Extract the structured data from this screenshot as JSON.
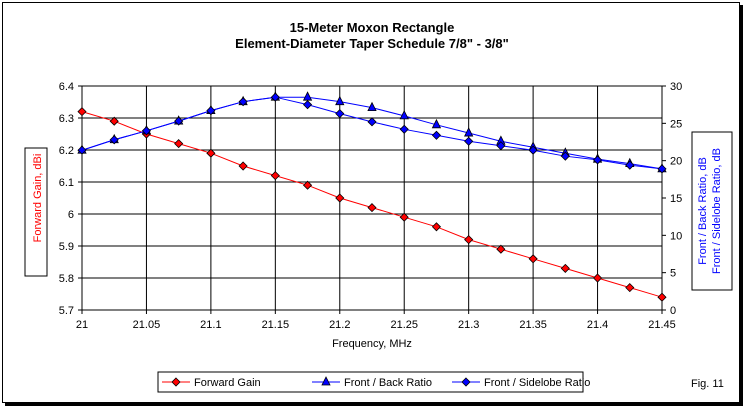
{
  "chart_data": {
    "type": "line",
    "title": [
      "15-Meter Moxon Rectangle",
      "Element-Diameter Taper Schedule 7/8\" - 3/8\""
    ],
    "xlabel": "Frequency, MHz",
    "ylabel": "Forward Gain,  dBi",
    "y2label": [
      "Front / Back Ratio,  dB",
      "Front / Sidelobe Ratio,  dB"
    ],
    "xlim": [
      21,
      21.45
    ],
    "ylim": [
      5.7,
      6.4
    ],
    "y2lim": [
      0,
      30
    ],
    "xticks": [
      "21",
      "21.05",
      "21.1",
      "21.15",
      "21.2",
      "21.25",
      "21.3",
      "21.35",
      "21.4",
      "21.45"
    ],
    "yticks": [
      "5.7",
      "5.8",
      "5.9",
      "6",
      "6.1",
      "6.2",
      "6.3",
      "6.4"
    ],
    "y2ticks": [
      "0",
      "5",
      "10",
      "15",
      "20",
      "25",
      "30"
    ],
    "x": [
      21,
      21.025,
      21.05,
      21.075,
      21.1,
      21.125,
      21.15,
      21.175,
      21.2,
      21.225,
      21.25,
      21.275,
      21.3,
      21.325,
      21.35,
      21.375,
      21.4,
      21.425,
      21.45
    ],
    "series": [
      {
        "name": "Forward Gain",
        "axis": "left",
        "color": "#ff0000",
        "marker": "diamond",
        "values": [
          6.32,
          6.29,
          6.25,
          6.22,
          6.19,
          6.15,
          6.12,
          6.09,
          6.05,
          6.02,
          5.99,
          5.96,
          5.92,
          5.89,
          5.86,
          5.83,
          5.8,
          5.77,
          5.74
        ]
      },
      {
        "name": "Front / Back Ratio",
        "axis": "right",
        "color": "#0000ff",
        "marker": "triangle",
        "values": [
          21.4,
          22.8,
          24.0,
          25.3,
          26.7,
          27.9,
          28.5,
          28.5,
          27.9,
          27.1,
          26.0,
          24.8,
          23.7,
          22.6,
          21.8,
          21.0,
          20.2,
          19.6,
          18.9
        ]
      },
      {
        "name": "Front / Sidelobe Ratio",
        "axis": "right",
        "color": "#0000ff",
        "marker": "diamond",
        "values": [
          21.4,
          22.8,
          24.0,
          25.3,
          26.7,
          27.9,
          28.5,
          27.5,
          26.3,
          25.2,
          24.2,
          23.4,
          22.6,
          22.0,
          21.4,
          20.6,
          20.1,
          19.4,
          18.9
        ]
      }
    ],
    "legend_position": "bottom",
    "annotation": "Fig. 11",
    "grid": true
  }
}
